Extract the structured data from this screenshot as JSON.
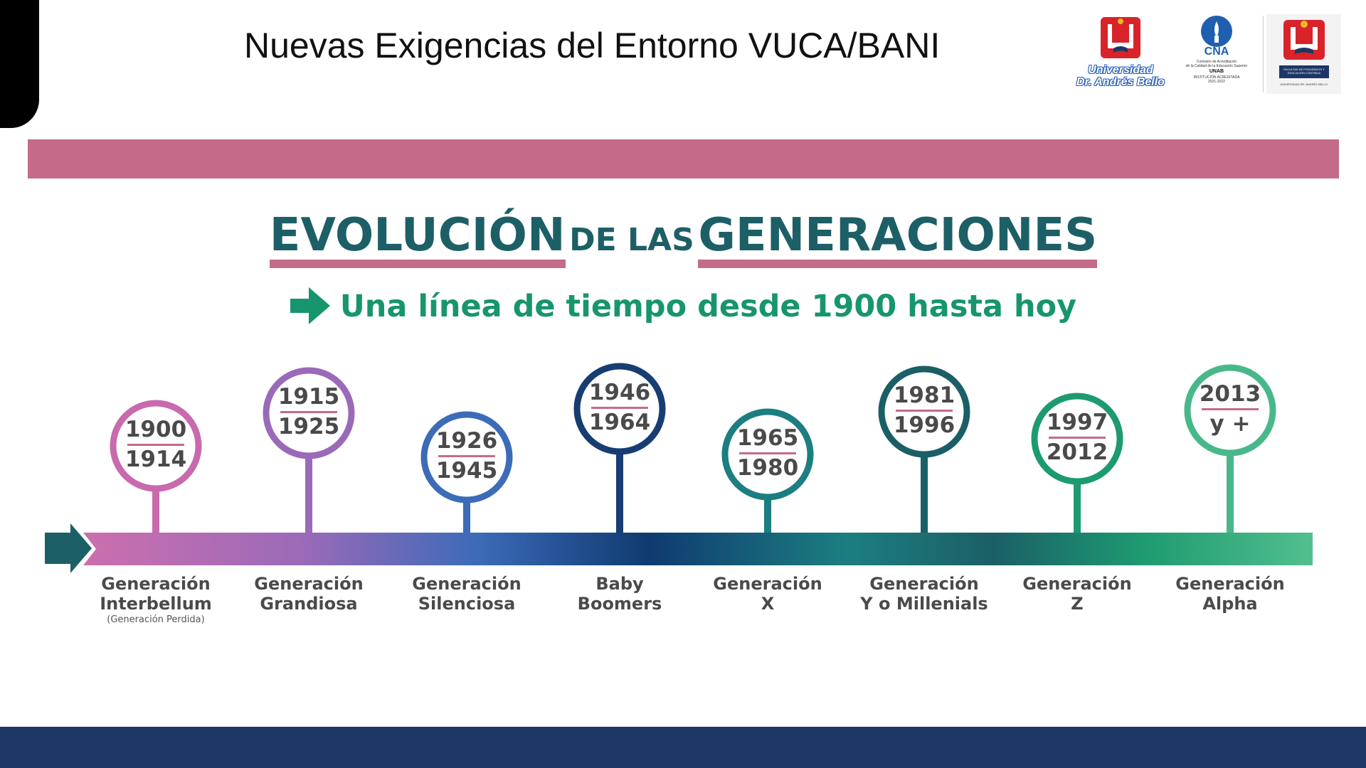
{
  "slide": {
    "title": "Nuevas Exigencias del Entorno VUCA/BANI"
  },
  "logos": {
    "unab": {
      "line1": "Universidad",
      "line2": "Dr. Andrés Bello"
    },
    "cna": {
      "mark": "CNA",
      "line1": "Comisión de Acreditación",
      "line2": "de la Calidad de la Educación Superior",
      "line3": "UNAB",
      "line4": "INSTITUCIÓN ACREDITADA",
      "line5": "2021-2022"
    },
    "facultad": {
      "band": "FACULTAD DE POSGRADOS Y EDUCACIÓN CONTINUA",
      "foot": "UNIVERSIDAD DR. ANDRÉS BELLO"
    }
  },
  "infographic": {
    "heading": {
      "part1": "EVOLUCIÓN",
      "part2": "DE LAS",
      "part3": "GENERACIONES"
    },
    "subheading": "Una línea de tiempo desde 1900 hasta hoy",
    "generations": [
      {
        "years_top": "1900",
        "years_bottom": "1914",
        "name_line1": "Generación",
        "name_line2": "Interbellum",
        "note": "(Generación Perdida)",
        "color": "#c86aad"
      },
      {
        "years_top": "1915",
        "years_bottom": "1925",
        "name_line1": "Generación",
        "name_line2": "Grandiosa",
        "note": "",
        "color": "#9a6ab8"
      },
      {
        "years_top": "1926",
        "years_bottom": "1945",
        "name_line1": "Generación",
        "name_line2": "Silenciosa",
        "note": "",
        "color": "#3c6bb8"
      },
      {
        "years_top": "1946",
        "years_bottom": "1964",
        "name_line1": "Baby",
        "name_line2": "Boomers",
        "note": "",
        "color": "#173d73"
      },
      {
        "years_top": "1965",
        "years_bottom": "1980",
        "name_line1": "Generación",
        "name_line2": "X",
        "note": "",
        "color": "#1c7e80"
      },
      {
        "years_top": "1981",
        "years_bottom": "1996",
        "name_line1": "Generación",
        "name_line2": "Y o Millenials",
        "note": "",
        "color": "#1b5f66"
      },
      {
        "years_top": "1997",
        "years_bottom": "2012",
        "name_line1": "Generación",
        "name_line2": "Z",
        "note": "",
        "color": "#1d9a70"
      },
      {
        "years_top": "2013",
        "years_bottom": "y +",
        "name_line1": "Generación",
        "name_line2": "Alpha",
        "note": "",
        "color": "#48b88a"
      }
    ]
  },
  "colors": {
    "pink_band": "#c56b8a",
    "footer_band": "#1e3764",
    "heading_teal": "#1d5f66",
    "subheading_green": "#17956e"
  }
}
